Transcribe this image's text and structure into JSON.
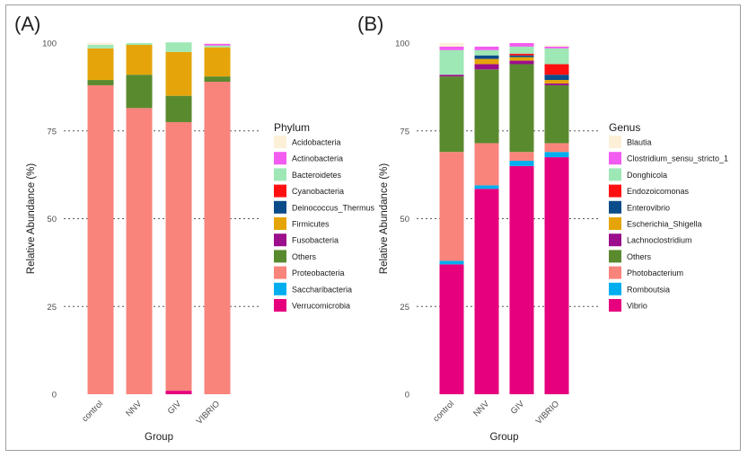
{
  "panel_labels": {
    "a": "(A)",
    "b": "(B)"
  },
  "chart_data": [
    {
      "type": "bar",
      "stacked": true,
      "title": "",
      "xlabel": "Group",
      "ylabel": "Relative Abundance (%)",
      "ylim": [
        0,
        100
      ],
      "yticks": [
        0,
        25,
        50,
        75,
        100
      ],
      "grid": "dotted horizontal at 75, 50 and 25",
      "legend_title": "Phylum",
      "legend_position": "right",
      "categories": [
        "control",
        "NNV",
        "GIV",
        "VIBRIO"
      ],
      "series": [
        {
          "name": "Verrucomicrobia",
          "color": "#E6007E",
          "values": [
            0,
            0,
            1,
            0
          ]
        },
        {
          "name": "Saccharibacteria",
          "color": "#00AEEF",
          "values": [
            0,
            0,
            0,
            0
          ]
        },
        {
          "name": "Proteobacteria",
          "color": "#F8847C",
          "values": [
            88,
            81.5,
            76.5,
            89
          ]
        },
        {
          "name": "Others",
          "color": "#5A8A2E",
          "values": [
            1.5,
            9.5,
            7.5,
            1.5
          ]
        },
        {
          "name": "Fusobacteria",
          "color": "#9B0E8C",
          "values": [
            0,
            0,
            0,
            0
          ]
        },
        {
          "name": "Firmicutes",
          "color": "#E5A50A",
          "values": [
            9,
            8.5,
            12.5,
            8.3
          ]
        },
        {
          "name": "Deinococcus_Thermus",
          "color": "#0B4C8A",
          "values": [
            0,
            0,
            0,
            0
          ]
        },
        {
          "name": "Cyanobacteria",
          "color": "#FF1010",
          "values": [
            0,
            0,
            0,
            0
          ]
        },
        {
          "name": "Bacteroidetes",
          "color": "#9EE8B6",
          "values": [
            1,
            0.5,
            2.7,
            0.5
          ]
        },
        {
          "name": "Actinobacteria",
          "color": "#F25CF0",
          "values": [
            0,
            0,
            0,
            0.5
          ]
        },
        {
          "name": "Acidobacteria",
          "color": "#FDF0D8",
          "values": [
            0.5,
            0,
            0,
            0.2
          ]
        }
      ],
      "legend_order": [
        "Acidobacteria",
        "Actinobacteria",
        "Bacteroidetes",
        "Cyanobacteria",
        "Deinococcus_Thermus",
        "Firmicutes",
        "Fusobacteria",
        "Others",
        "Proteobacteria",
        "Saccharibacteria",
        "Verrucomicrobia"
      ]
    },
    {
      "type": "bar",
      "stacked": true,
      "title": "",
      "xlabel": "Group",
      "ylabel": "Relative Abundance (%)",
      "ylim": [
        0,
        100
      ],
      "yticks": [
        0,
        25,
        50,
        75,
        100
      ],
      "grid": "dotted horizontal at 75, 50 and 25",
      "legend_title": "Genus",
      "legend_position": "right",
      "categories": [
        "control",
        "NNV",
        "GIV",
        "VIBRIO"
      ],
      "series": [
        {
          "name": "Vibrio",
          "color": "#E6007E",
          "values": [
            37,
            58.5,
            65,
            67.5
          ]
        },
        {
          "name": "Romboutsia",
          "color": "#00AEEF",
          "values": [
            1,
            1,
            1.5,
            1.5
          ]
        },
        {
          "name": "Photobacterium",
          "color": "#F8847C",
          "values": [
            31,
            12,
            2.5,
            2.5
          ]
        },
        {
          "name": "Others",
          "color": "#5A8A2E",
          "values": [
            21.5,
            21,
            25,
            16.5
          ]
        },
        {
          "name": "Lachnoclostridium",
          "color": "#9B0E8C",
          "values": [
            0.5,
            1.5,
            1,
            0.5
          ]
        },
        {
          "name": "Escherichia_Shigella",
          "color": "#E5A50A",
          "values": [
            0,
            1.5,
            1,
            1
          ]
        },
        {
          "name": "Enterovibrio",
          "color": "#0B4C8A",
          "values": [
            0,
            1,
            0.5,
            1.5
          ]
        },
        {
          "name": "Endozoicomonas",
          "color": "#FF1010",
          "values": [
            0,
            0,
            0.5,
            3
          ]
        },
        {
          "name": "Donghicola",
          "color": "#9EE8B6",
          "values": [
            7,
            1.5,
            2,
            4.5
          ]
        },
        {
          "name": "Clostridium_sensu_stricto_1",
          "color": "#F25CF0",
          "values": [
            1,
            1,
            1,
            0.5
          ]
        },
        {
          "name": "Blautia",
          "color": "#FDF0D8",
          "values": [
            1,
            0,
            0,
            0.5
          ]
        }
      ],
      "legend_order": [
        "Blautia",
        "Clostridium_sensu_stricto_1",
        "Donghicola",
        "Endozoicomonas",
        "Enterovibrio",
        "Escherichia_Shigella",
        "Lachnoclostridium",
        "Others",
        "Photobacterium",
        "Romboutsia",
        "Vibrio"
      ]
    }
  ]
}
